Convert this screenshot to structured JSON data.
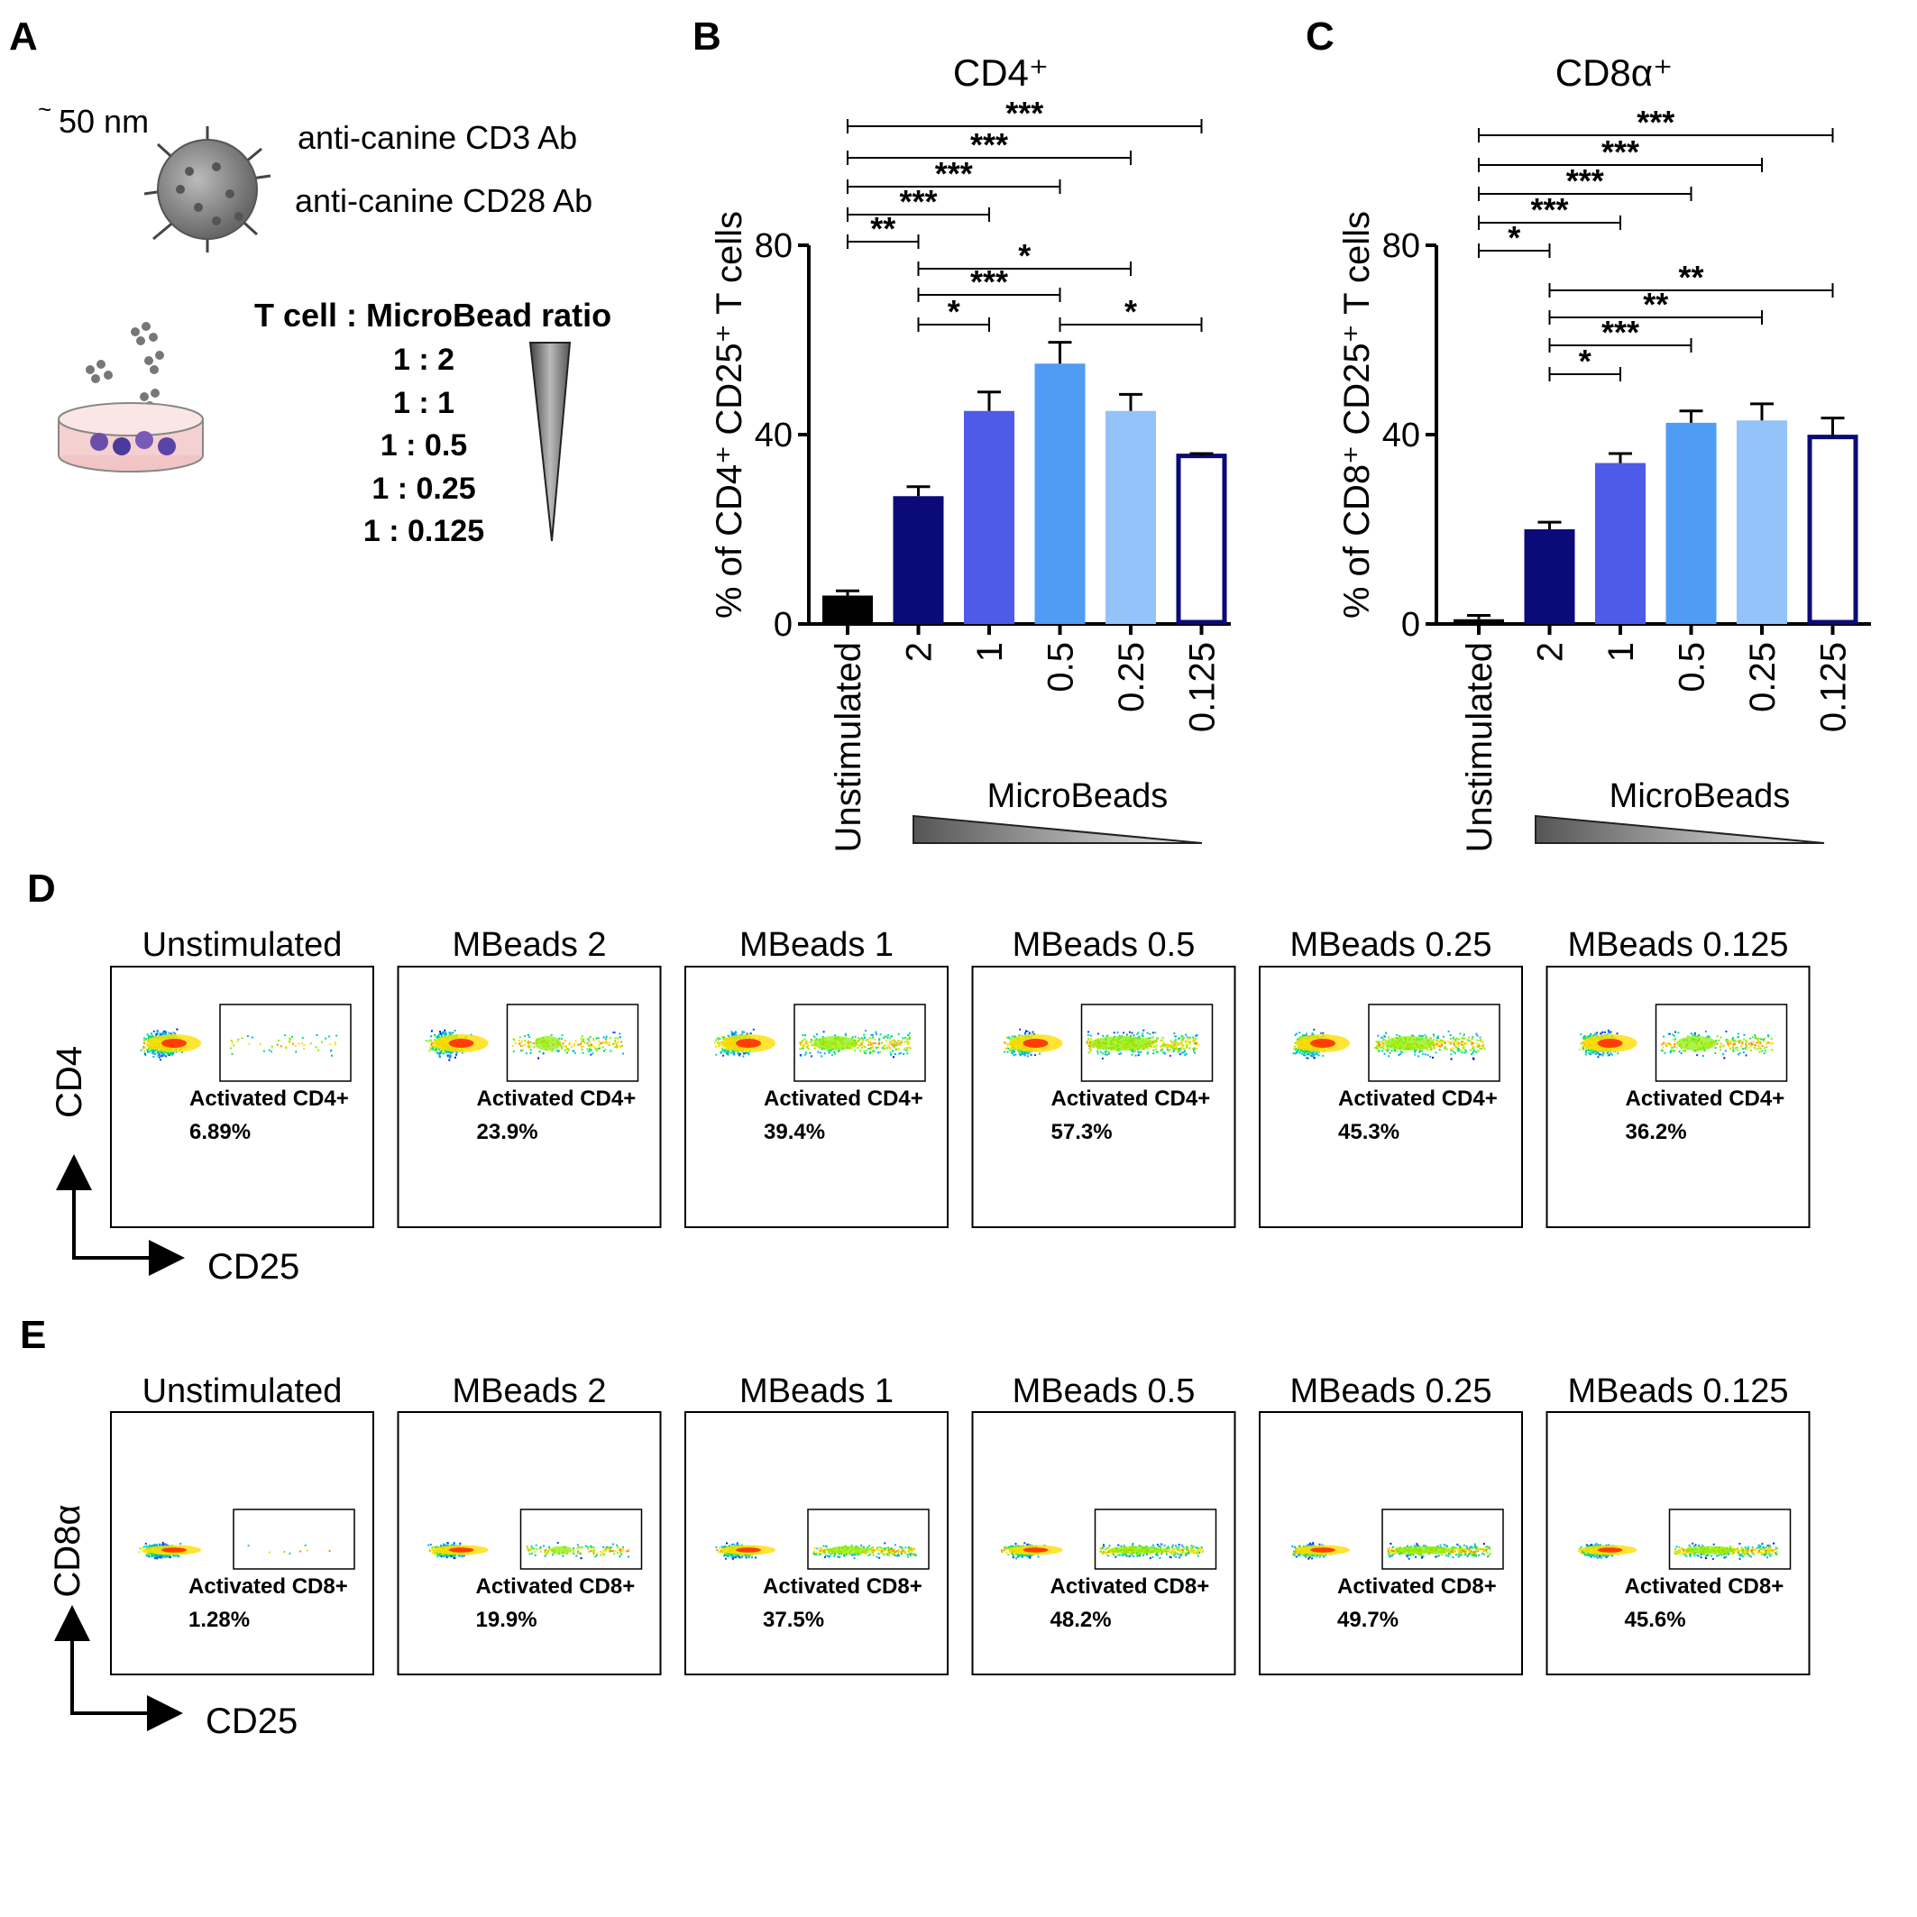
{
  "panel_labels": [
    "A",
    "B",
    "C",
    "D",
    "E"
  ],
  "panel_a": {
    "size_label": "50 nm",
    "size_prefix": "~",
    "ab_labels": [
      "anti-canine CD3 Ab",
      "anti-canine CD28 Ab"
    ],
    "ratio_title": "T cell : MicroBead ratio",
    "ratios": [
      "1 : 2",
      "1 : 1",
      "1 : 0.5",
      "1 : 0.25",
      "1 : 0.125"
    ]
  },
  "chart_data": [
    {
      "type": "bar",
      "title": "CD4⁺",
      "ylabel": "% of CD4⁺ CD25⁺ T cells",
      "ylim": [
        0,
        80
      ],
      "yticks": [
        "0",
        "40",
        "80"
      ],
      "categories": [
        "Unstimulated",
        "2",
        "1",
        "0.5",
        "0.25",
        "0.125"
      ],
      "values": [
        6,
        27,
        45,
        55,
        45,
        35.5
      ],
      "errors": [
        1,
        2,
        4,
        4.5,
        3.5,
        0.5
      ],
      "colors": [
        "#000000",
        "#0a0a78",
        "#4e5ae8",
        "#4f9cf5",
        "#93c3f8",
        "#ffffff"
      ],
      "xgroup_label": "MicroBeads",
      "significance": [
        {
          "from": 0,
          "to": 5,
          "label": "***"
        },
        {
          "from": 0,
          "to": 4,
          "label": "***"
        },
        {
          "from": 0,
          "to": 3,
          "label": "***"
        },
        {
          "from": 0,
          "to": 2,
          "label": "***"
        },
        {
          "from": 0,
          "to": 1,
          "label": "**"
        },
        {
          "from": 1,
          "to": 4,
          "label": "*"
        },
        {
          "from": 1,
          "to": 3,
          "label": "***"
        },
        {
          "from": 1,
          "to": 2,
          "label": "*"
        },
        {
          "from": 3,
          "to": 5,
          "label": "*"
        }
      ]
    },
    {
      "type": "bar",
      "title": "CD8α⁺",
      "ylabel": "% of CD8⁺ CD25⁺ T cells",
      "ylim": [
        0,
        80
      ],
      "yticks": [
        "0",
        "40",
        "80"
      ],
      "categories": [
        "Unstimulated",
        "2",
        "1",
        "0.5",
        "0.25",
        "0.125"
      ],
      "values": [
        1,
        20,
        34,
        42.5,
        43,
        39.5
      ],
      "errors": [
        0.8,
        1.5,
        2,
        2.5,
        3.5,
        4
      ],
      "colors": [
        "#000000",
        "#0a0a78",
        "#4e5ae8",
        "#4f9cf5",
        "#93c3f8",
        "#ffffff"
      ],
      "xgroup_label": "MicroBeads",
      "significance": [
        {
          "from": 0,
          "to": 5,
          "label": "***"
        },
        {
          "from": 0,
          "to": 4,
          "label": "***"
        },
        {
          "from": 0,
          "to": 3,
          "label": "***"
        },
        {
          "from": 0,
          "to": 2,
          "label": "***"
        },
        {
          "from": 0,
          "to": 1,
          "label": "*"
        },
        {
          "from": 1,
          "to": 5,
          "label": "**"
        },
        {
          "from": 1,
          "to": 4,
          "label": "**"
        },
        {
          "from": 1,
          "to": 3,
          "label": "***"
        },
        {
          "from": 1,
          "to": 2,
          "label": "*"
        }
      ]
    }
  ],
  "flow_d": {
    "y_label": "CD4",
    "x_label": "CD25",
    "gate_name": "Activated CD4+",
    "plots": [
      {
        "title": "Unstimulated",
        "percent": "6.89%",
        "fraction": 0.0689
      },
      {
        "title": "MBeads 2",
        "percent": "23.9%",
        "fraction": 0.239
      },
      {
        "title": "MBeads 1",
        "percent": "39.4%",
        "fraction": 0.394
      },
      {
        "title": "MBeads 0.5",
        "percent": "57.3%",
        "fraction": 0.573
      },
      {
        "title": "MBeads 0.25",
        "percent": "45.3%",
        "fraction": 0.453
      },
      {
        "title": "MBeads 0.125",
        "percent": "36.2%",
        "fraction": 0.362
      }
    ]
  },
  "flow_e": {
    "y_label": "CD8α",
    "x_label": "CD25",
    "gate_name": "Activated CD8+",
    "plots": [
      {
        "title": "Unstimulated",
        "percent": "1.28%",
        "fraction": 0.0128
      },
      {
        "title": "MBeads 2",
        "percent": "19.9%",
        "fraction": 0.199
      },
      {
        "title": "MBeads 1",
        "percent": "37.5%",
        "fraction": 0.375
      },
      {
        "title": "MBeads 0.5",
        "percent": "48.2%",
        "fraction": 0.482
      },
      {
        "title": "MBeads 0.25",
        "percent": "49.7%",
        "fraction": 0.497
      },
      {
        "title": "MBeads 0.125",
        "percent": "45.6%",
        "fraction": 0.456
      }
    ]
  }
}
